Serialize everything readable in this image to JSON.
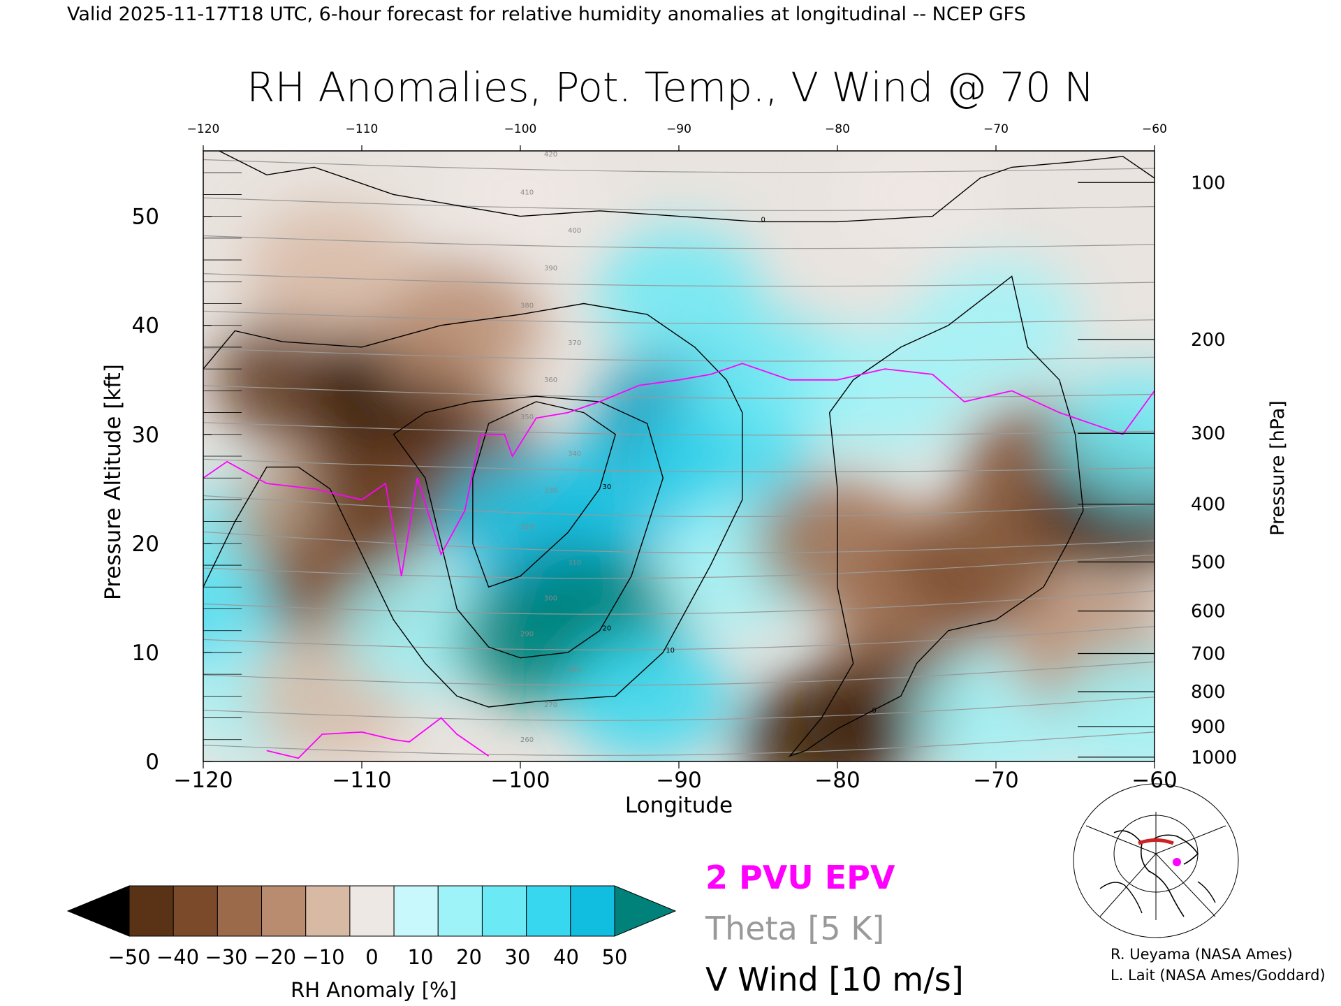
{
  "header": {
    "valid_text": "Valid 2025-11-17T18 UTC, 6-hour forecast for relative humidity anomalies at longitudinal -- NCEP GFS"
  },
  "chart_data": {
    "type": "heatmap",
    "title": "RH Anomalies, Pot. Temp., V Wind @ 70 N",
    "xlabel": "Longitude",
    "ylabel": "Pressure Altitude [kft]",
    "y2label": "Pressure [hPa]",
    "xlim": [
      -120,
      -60
    ],
    "ylim": [
      0,
      56
    ],
    "x_ticks": [
      -120,
      -110,
      -100,
      -90,
      -80,
      -70,
      -60
    ],
    "y_ticks": [
      0,
      10,
      20,
      30,
      40,
      50
    ],
    "pressure_ticks": [
      {
        "label": "100",
        "kft": 53.1
      },
      {
        "label": "200",
        "kft": 38.7
      },
      {
        "label": "300",
        "kft": 30.1
      },
      {
        "label": "400",
        "kft": 23.6
      },
      {
        "label": "500",
        "kft": 18.3
      },
      {
        "label": "600",
        "kft": 13.8
      },
      {
        "label": "700",
        "kft": 9.9
      },
      {
        "label": "800",
        "kft": 6.4
      },
      {
        "label": "900",
        "kft": 3.2
      },
      {
        "label": "1000",
        "kft": 0.4
      }
    ],
    "rh_field": {
      "note_colors": "anomaly percent, -50 brown to +50 teal",
      "points": [
        {
          "lon": -119,
          "kft": 14,
          "value": 30
        },
        {
          "lon": -117,
          "kft": 20,
          "value": 25
        },
        {
          "lon": -116,
          "kft": 6,
          "value": 15
        },
        {
          "lon": -113,
          "kft": 22,
          "value": -15
        },
        {
          "lon": -111,
          "kft": 16,
          "value": -30
        },
        {
          "lon": -108,
          "kft": 26,
          "value": -40
        },
        {
          "lon": -104,
          "kft": 28,
          "value": -30
        },
        {
          "lon": -112,
          "kft": 6,
          "value": -10
        },
        {
          "lon": -106,
          "kft": 12,
          "value": 15
        },
        {
          "lon": -100,
          "kft": 22,
          "value": 40
        },
        {
          "lon": -97,
          "kft": 15,
          "value": 45
        },
        {
          "lon": -99,
          "kft": 11,
          "value": 55
        },
        {
          "lon": -95,
          "kft": 13,
          "value": 55
        },
        {
          "lon": -93,
          "kft": 25,
          "value": 40
        },
        {
          "lon": -90,
          "kft": 32,
          "value": 45
        },
        {
          "lon": -87,
          "kft": 28,
          "value": 30
        },
        {
          "lon": -86,
          "kft": 18,
          "value": 15
        },
        {
          "lon": -92,
          "kft": 6,
          "value": 30
        },
        {
          "lon": -84,
          "kft": 35,
          "value": 25
        },
        {
          "lon": -77,
          "kft": 34,
          "value": 15
        },
        {
          "lon": -80,
          "kft": 20,
          "value": -20
        },
        {
          "lon": -75,
          "kft": 14,
          "value": -25
        },
        {
          "lon": -71,
          "kft": 18,
          "value": -30
        },
        {
          "lon": -67,
          "kft": 27,
          "value": -30
        },
        {
          "lon": -62,
          "kft": 23,
          "value": -50
        },
        {
          "lon": -77,
          "kft": 5,
          "value": -40
        },
        {
          "lon": -81,
          "kft": 2,
          "value": -50
        },
        {
          "lon": -70,
          "kft": 4,
          "value": 15
        },
        {
          "lon": -64,
          "kft": 10,
          "value": -15
        },
        {
          "lon": -61,
          "kft": 4,
          "value": 15
        },
        {
          "lon": -114,
          "kft": 35,
          "value": -40
        },
        {
          "lon": -108,
          "kft": 34,
          "value": -45
        },
        {
          "lon": -104,
          "kft": 40,
          "value": -15
        },
        {
          "lon": -112,
          "kft": 45,
          "value": -10
        },
        {
          "lon": -90,
          "kft": 43,
          "value": 20
        },
        {
          "lon": -70,
          "kft": 40,
          "value": 15
        },
        {
          "lon": -100,
          "kft": 52,
          "value": 0
        },
        {
          "lon": -75,
          "kft": 52,
          "value": 0
        },
        {
          "lon": -61,
          "kft": 30,
          "value": 20
        }
      ]
    },
    "theta_lines": {
      "values": [
        260,
        270,
        280,
        290,
        300,
        310,
        320,
        330,
        340,
        350,
        360,
        370,
        380,
        390,
        400,
        410,
        420
      ],
      "labels_shown": [
        "260",
        "270",
        "280",
        "290",
        "300",
        "310",
        "320",
        "330",
        "340",
        "350",
        "360",
        "370",
        "380",
        "390",
        "400",
        "410",
        "420"
      ]
    },
    "pv_2pvu_line": [
      [
        -120,
        26
      ],
      [
        -118.5,
        27.5
      ],
      [
        -116,
        25.5
      ],
      [
        -113,
        25
      ],
      [
        -110,
        24
      ],
      [
        -108.5,
        25.5
      ],
      [
        -107.5,
        17
      ],
      [
        -106.5,
        26
      ],
      [
        -105,
        19
      ],
      [
        -103.5,
        23
      ],
      [
        -102.5,
        30
      ],
      [
        -101,
        30
      ],
      [
        -100.5,
        28
      ],
      [
        -99,
        31.5
      ],
      [
        -97,
        32
      ],
      [
        -95,
        33
      ],
      [
        -92.5,
        34.5
      ],
      [
        -90,
        35
      ],
      [
        -88,
        35.5
      ],
      [
        -86,
        36.5
      ],
      [
        -83,
        35
      ],
      [
        -80,
        35
      ],
      [
        -77,
        36
      ],
      [
        -74,
        35.5
      ],
      [
        -72,
        33
      ],
      [
        -69,
        34
      ],
      [
        -66,
        32
      ],
      [
        -62,
        30
      ],
      [
        -60,
        34
      ]
    ],
    "pv_surface_line": [
      [
        -116,
        1
      ],
      [
        -114,
        0.3
      ],
      [
        -112.5,
        2.5
      ],
      [
        -110,
        2.7
      ],
      [
        -108,
        2
      ],
      [
        -107,
        1.8
      ],
      [
        -105,
        4
      ],
      [
        -104,
        2.5
      ],
      [
        -102,
        0.5
      ]
    ],
    "vwind_contours": [
      {
        "label": "10",
        "points": [
          [
            -120,
            36
          ],
          [
            -118,
            39.5
          ],
          [
            -115,
            38.5
          ],
          [
            -110,
            38
          ],
          [
            -105,
            40
          ],
          [
            -100,
            41
          ],
          [
            -96,
            42
          ],
          [
            -92,
            41
          ],
          [
            -89,
            38
          ],
          [
            -87,
            35
          ],
          [
            -86,
            32
          ],
          [
            -86,
            24
          ],
          [
            -88,
            18
          ],
          [
            -91,
            10
          ],
          [
            -94,
            6
          ],
          [
            -99,
            5.5
          ],
          [
            -102,
            5
          ],
          [
            -104,
            6
          ],
          [
            -106,
            9
          ],
          [
            -108,
            13
          ],
          [
            -110,
            19
          ],
          [
            -112,
            25
          ],
          [
            -114,
            27
          ],
          [
            -116,
            27
          ],
          [
            -118,
            22
          ],
          [
            -120,
            16
          ]
        ]
      },
      {
        "label": "20",
        "points": [
          [
            -108,
            30
          ],
          [
            -106,
            32
          ],
          [
            -103,
            33
          ],
          [
            -99,
            33.5
          ],
          [
            -95,
            33
          ],
          [
            -92,
            31
          ],
          [
            -91,
            26
          ],
          [
            -93,
            17
          ],
          [
            -95,
            12
          ],
          [
            -97,
            10
          ],
          [
            -100,
            9.5
          ],
          [
            -102,
            10.5
          ],
          [
            -104,
            14
          ],
          [
            -105,
            20
          ],
          [
            -106,
            26
          ],
          [
            -108,
            30
          ]
        ]
      },
      {
        "label": "30",
        "points": [
          [
            -103,
            26
          ],
          [
            -102,
            31
          ],
          [
            -99,
            33
          ],
          [
            -96,
            32
          ],
          [
            -94,
            30
          ],
          [
            -95,
            25
          ],
          [
            -97,
            21
          ],
          [
            -100,
            17
          ],
          [
            -102,
            16
          ],
          [
            -103,
            20
          ],
          [
            -103,
            26
          ]
        ]
      },
      {
        "label": "0",
        "points": [
          [
            -73,
            40
          ],
          [
            -69,
            44.5
          ],
          [
            -68,
            38
          ],
          [
            -66,
            35
          ],
          [
            -65,
            30
          ],
          [
            -64.5,
            23
          ],
          [
            -65.5,
            20
          ],
          [
            -67,
            16
          ],
          [
            -70,
            13
          ],
          [
            -73,
            12
          ],
          [
            -75,
            9
          ],
          [
            -76,
            6
          ],
          [
            -78,
            4.5
          ],
          [
            -80,
            3
          ],
          [
            -82,
            1
          ],
          [
            -83,
            0.5
          ],
          [
            -81,
            4
          ],
          [
            -79,
            9
          ],
          [
            -80,
            16
          ],
          [
            -80,
            25
          ],
          [
            -80.5,
            32
          ],
          [
            -79,
            35
          ],
          [
            -76,
            38
          ],
          [
            -73,
            40
          ]
        ]
      },
      {
        "label": "0",
        "points": [
          [
            -119,
            56
          ],
          [
            -116,
            53.8
          ],
          [
            -113,
            54.5
          ],
          [
            -108,
            52
          ],
          [
            -104,
            51
          ],
          [
            -100,
            50
          ],
          [
            -95,
            50.5
          ],
          [
            -90,
            50
          ],
          [
            -85,
            49.5
          ],
          [
            -80,
            49.5
          ],
          [
            -74,
            50
          ],
          [
            -71,
            53.5
          ],
          [
            -69,
            54.5
          ],
          [
            -65,
            55
          ],
          [
            -62,
            55.5
          ],
          [
            -60,
            53.5
          ]
        ]
      }
    ],
    "legend": {
      "colorbar_label": "RH Anomaly [%]",
      "colorbar_ticks": [
        "-50",
        "-40",
        "-30",
        "-20",
        "-10",
        "0",
        "10",
        "20",
        "30",
        "40",
        "50"
      ],
      "colorbar_colors": [
        "#000000",
        "#3b1d07",
        "#5a3216",
        "#7a4a2a",
        "#9a6a4a",
        "#b98c70",
        "#d8b9a4",
        "#eee8e4",
        "#c8f8fb",
        "#9ef3f8",
        "#6be9f5",
        "#36d7ef",
        "#12bee0",
        "#0898bb",
        "#00827a"
      ],
      "pv_label": "2 PVU EPV",
      "theta_label": "Theta [5 K]",
      "wind_label": "V Wind [10 m/s]",
      "pv_color": "#ff00ff",
      "theta_color": "#999999"
    },
    "credits": [
      "R. Ueyama (NASA Ames)",
      "L. Lait (NASA Ames/Goddard)"
    ]
  }
}
